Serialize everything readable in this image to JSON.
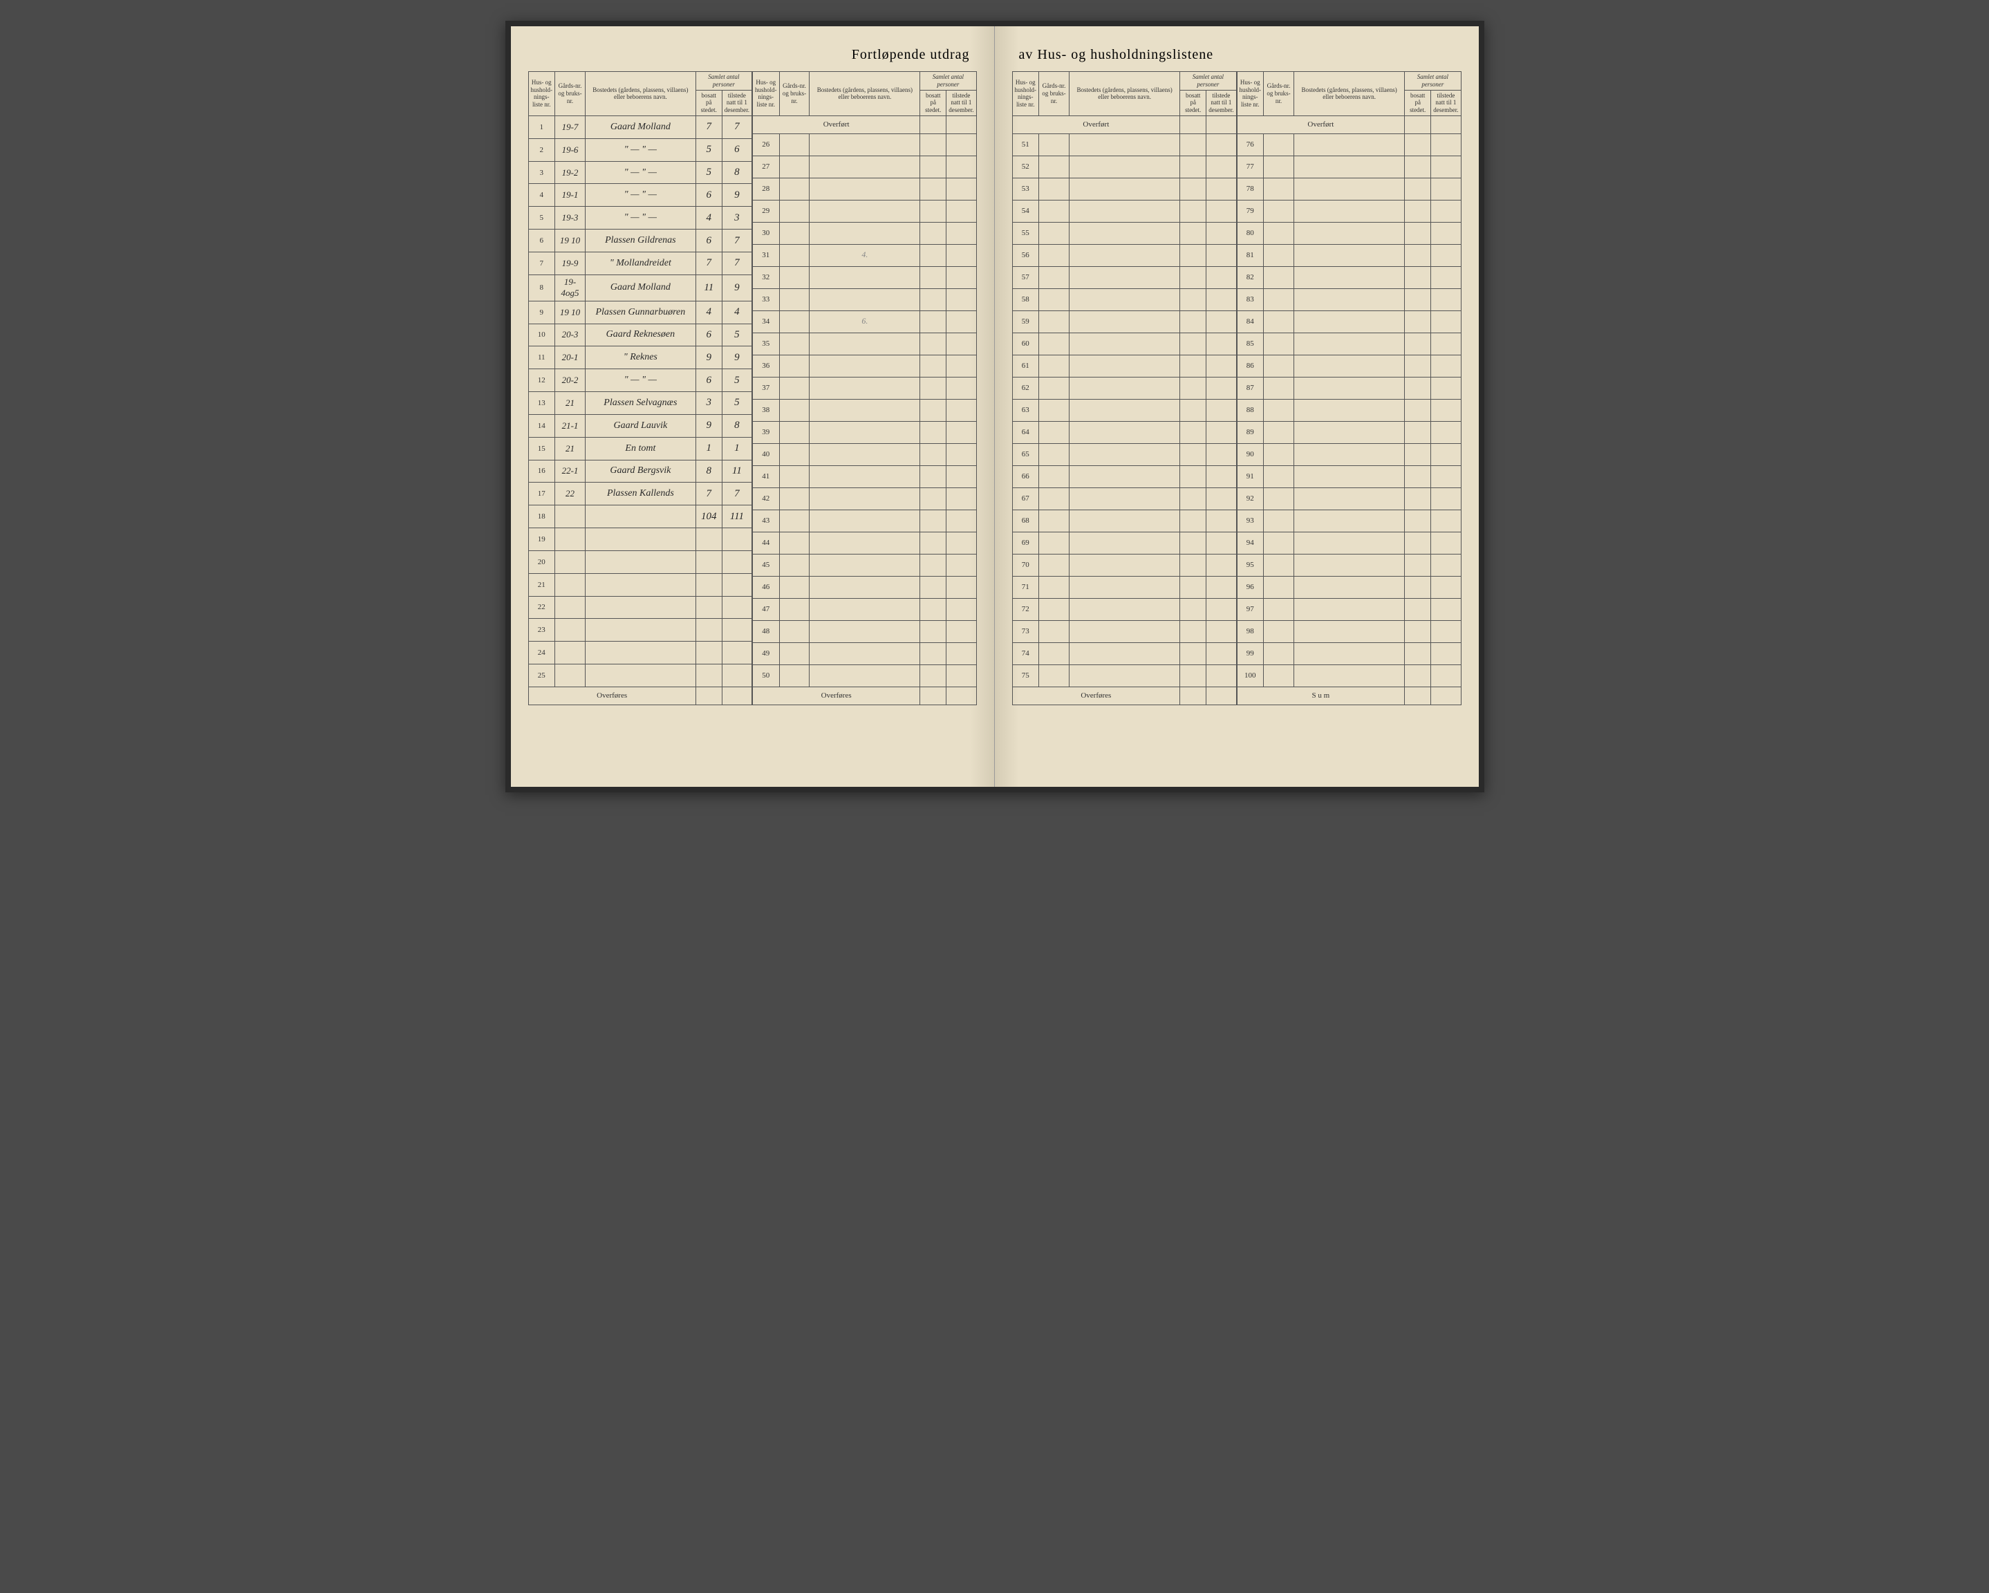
{
  "title_left": "Fortløpende utdrag",
  "title_right": "av Hus- og husholdningslistene",
  "headers": {
    "col_liste": "Hus- og hushold-nings-liste nr.",
    "col_gard": "Gårds-nr. og bruks-nr.",
    "col_bosted": "Bostedets (gårdens, plassens, villaens) eller beboerens navn.",
    "col_samlet": "Samlet antal personer",
    "col_bosatt": "bosatt på stedet.",
    "col_tilstede": "tilstede natt til 1 desember."
  },
  "overfort_label": "Overført",
  "overfores_label": "Overføres",
  "sum_label": "S u m",
  "section1": {
    "start": 1,
    "rows": [
      {
        "n": "1",
        "g": "19-7",
        "name": "Gaard Molland",
        "b": "7",
        "t": "7"
      },
      {
        "n": "2",
        "g": "19-6",
        "name": "\"   — \" —",
        "b": "5",
        "t": "6"
      },
      {
        "n": "3",
        "g": "19-2",
        "name": "\"   — \" —",
        "b": "5",
        "t": "8"
      },
      {
        "n": "4",
        "g": "19-1",
        "name": "\"   — \" —",
        "b": "6",
        "t": "9"
      },
      {
        "n": "5",
        "g": "19-3",
        "name": "\"   — \" —",
        "b": "4",
        "t": "3"
      },
      {
        "n": "6",
        "g": "19 10",
        "name": "Plassen Gildrenas",
        "b": "6",
        "t": "7",
        "mark": "4."
      },
      {
        "n": "7",
        "g": "19-9",
        "name": "\"   Mollandreidet",
        "b": "7",
        "t": "7"
      },
      {
        "n": "8",
        "g": "19-4og5",
        "name": "Gaard Molland",
        "b": "11",
        "t": "9"
      },
      {
        "n": "9",
        "g": "19 10",
        "name": "Plassen Gunnarbuøren",
        "b": "4",
        "t": "4",
        "mark": "6."
      },
      {
        "n": "10",
        "g": "20-3",
        "name": "Gaard Reknesøen",
        "b": "6",
        "t": "5"
      },
      {
        "n": "11",
        "g": "20-1",
        "name": "\"   Reknes",
        "b": "9",
        "t": "9"
      },
      {
        "n": "12",
        "g": "20-2",
        "name": "\"   — \" —",
        "b": "6",
        "t": "5"
      },
      {
        "n": "13",
        "g": "21",
        "name": "Plassen Selvagnæs",
        "b": "3",
        "t": "5"
      },
      {
        "n": "14",
        "g": "21-1",
        "name": "Gaard Lauvik",
        "b": "9",
        "t": "8"
      },
      {
        "n": "15",
        "g": "21",
        "name": "En tomt",
        "b": "1",
        "t": "1"
      },
      {
        "n": "16",
        "g": "22-1",
        "name": "Gaard Bergsvik",
        "b": "8",
        "t": "11"
      },
      {
        "n": "17",
        "g": "22",
        "name": "Plassen Kallends",
        "b": "7",
        "t": "7"
      },
      {
        "n": "18",
        "g": "",
        "name": "",
        "b": "104",
        "t": "111"
      },
      {
        "n": "19",
        "g": "",
        "name": "",
        "b": "",
        "t": ""
      },
      {
        "n": "20",
        "g": "",
        "name": "",
        "b": "",
        "t": ""
      },
      {
        "n": "21",
        "g": "",
        "name": "",
        "b": "",
        "t": ""
      },
      {
        "n": "22",
        "g": "",
        "name": "",
        "b": "",
        "t": ""
      },
      {
        "n": "23",
        "g": "",
        "name": "",
        "b": "",
        "t": ""
      },
      {
        "n": "24",
        "g": "",
        "name": "",
        "b": "",
        "t": ""
      },
      {
        "n": "25",
        "g": "",
        "name": "",
        "b": "",
        "t": ""
      }
    ]
  },
  "section2": {
    "start": 26,
    "count": 25
  },
  "section3": {
    "start": 51,
    "count": 25
  },
  "section4": {
    "start": 76,
    "count": 25
  },
  "colors": {
    "paper": "#e8dfc8",
    "ink": "#333333",
    "rule": "#555555",
    "handwriting": "#2a2a2a"
  }
}
